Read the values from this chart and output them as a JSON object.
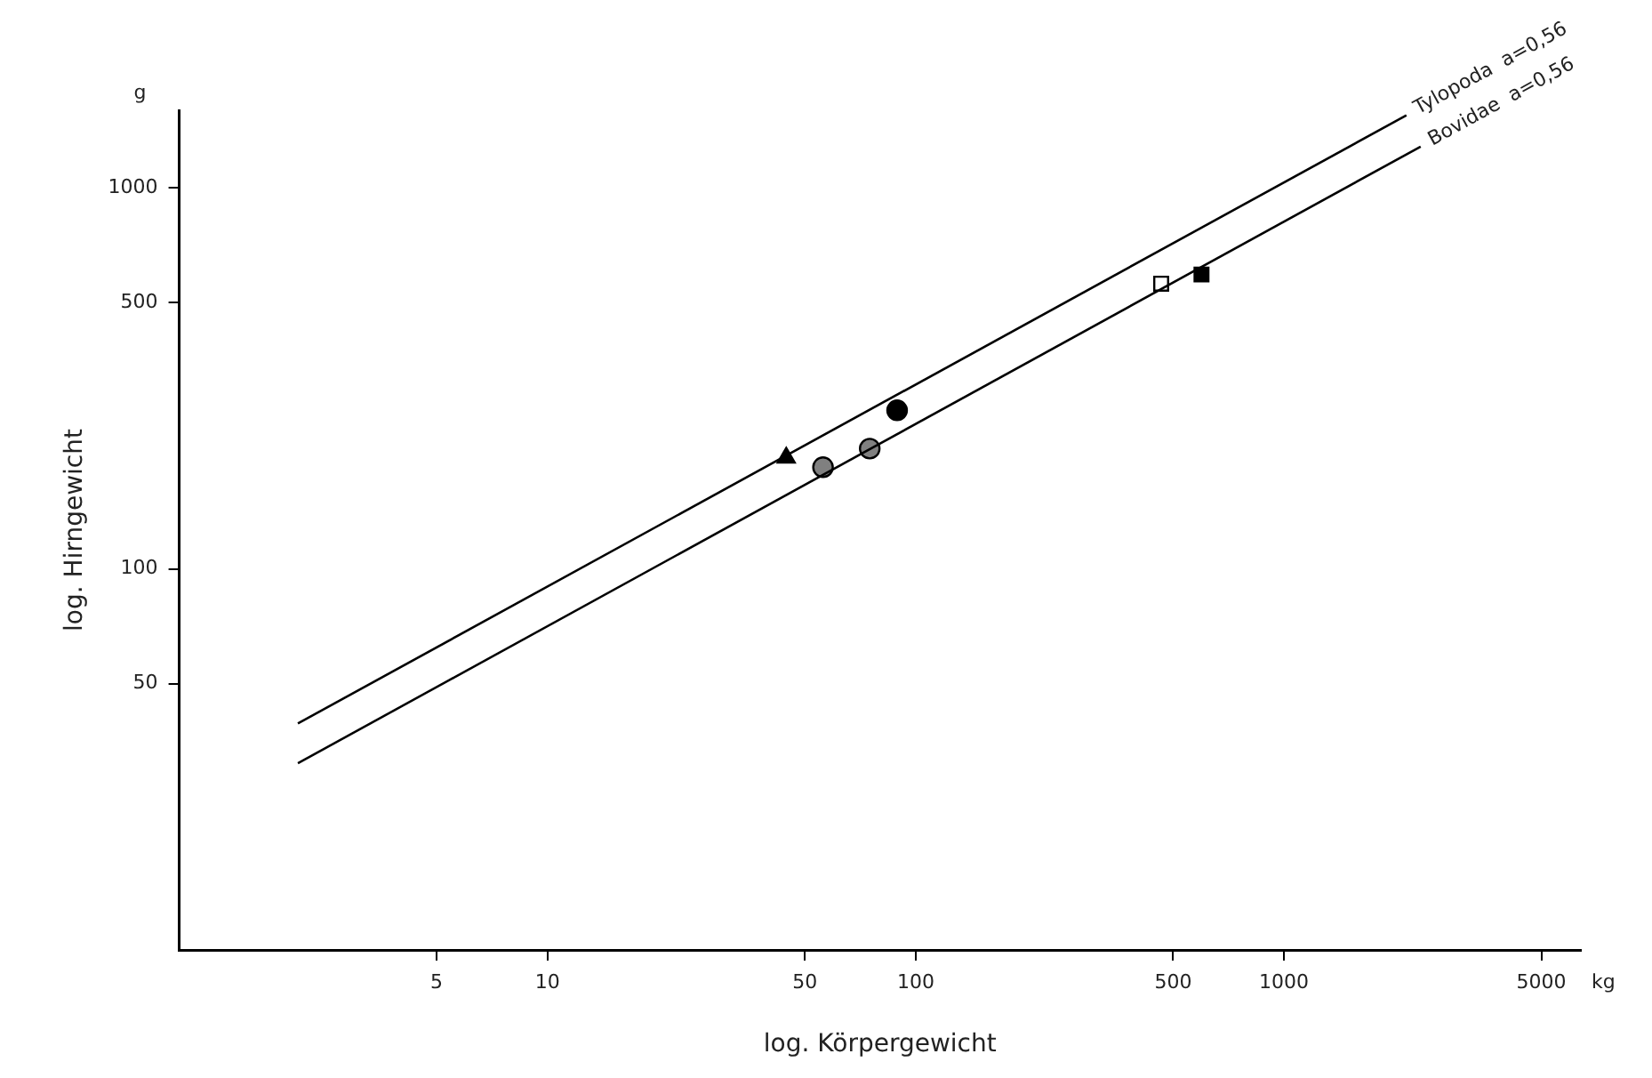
{
  "chart_data": {
    "type": "scatter",
    "xlabel": "log. Körpergewicht",
    "ylabel": "log. Hirngewicht",
    "log": "xy",
    "grid": false,
    "legend": false,
    "xlim": [
      1,
      6400
    ],
    "ylim": [
      10,
      1600
    ],
    "xticks": [
      5,
      10,
      50,
      100,
      500,
      1000,
      5000
    ],
    "yticks": [
      50,
      100,
      500,
      1000
    ],
    "annotations": [
      "g",
      "kg"
    ],
    "series": [
      {
        "type": "line",
        "name": "Tylopoda  a=0,56",
        "color": "#000000",
        "x": [
          2.1,
          2150
        ],
        "values": [
          39.3,
          1553
        ],
        "marker": "none",
        "line_style": "solid"
      },
      {
        "type": "line",
        "name": "Bovidae  a=0,56",
        "color": "#000000",
        "x": [
          2.1,
          2350
        ],
        "values": [
          30.9,
          1285
        ],
        "marker": "none",
        "line_style": "solid"
      },
      {
        "type": "scatter",
        "color": "#000000",
        "x": [
          44.5
        ],
        "values": [
          196
        ],
        "marker": "triangle"
      },
      {
        "type": "scatter",
        "color": "#808080",
        "x": [
          56
        ],
        "values": [
          185
        ],
        "marker": "circle"
      },
      {
        "type": "scatter",
        "color": "#808080",
        "x": [
          75
        ],
        "values": [
          207
        ],
        "marker": "circle"
      },
      {
        "type": "scatter",
        "color": "#000000",
        "x": [
          89
        ],
        "values": [
          261
        ],
        "marker": "circle"
      },
      {
        "type": "scatter",
        "color": "#ffffff",
        "x": [
          464
        ],
        "values": [
          561
        ],
        "marker": "square"
      },
      {
        "type": "scatter",
        "color": "#000000",
        "x": [
          597
        ],
        "values": [
          593
        ],
        "marker": "square"
      }
    ]
  }
}
